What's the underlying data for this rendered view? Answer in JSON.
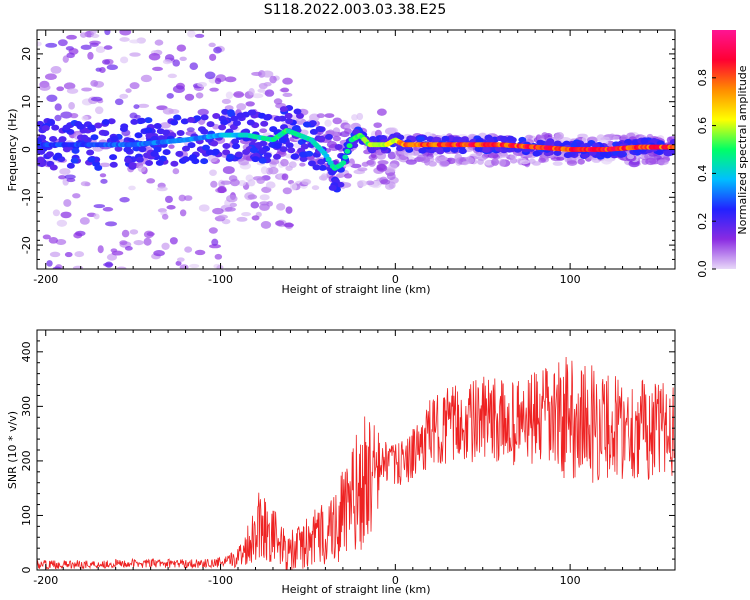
{
  "title": "S118.2022.003.03.38.E25",
  "chart_data": [
    {
      "type": "heatmap",
      "xlabel": "Height of straight line (km)",
      "ylabel": "Frequency (Hz)",
      "xlim": [
        -205,
        160
      ],
      "ylim": [
        -25,
        25
      ],
      "xticks": [
        -200,
        -100,
        0,
        100
      ],
      "yticks": [
        -20,
        -10,
        0,
        10,
        20
      ],
      "colorbar": {
        "label": "Normalized spectral amplitude",
        "ticks": [
          0.0,
          0.2,
          0.4,
          0.6,
          0.8
        ],
        "range": [
          0,
          1
        ],
        "colormap": [
          "#e8d8f8",
          "#8a2be2",
          "#2222ff",
          "#00bfff",
          "#00ff66",
          "#ffff00",
          "#ff8c00",
          "#ff0033",
          "#ff1493"
        ]
      },
      "ridge": {
        "x": [
          -205,
          -180,
          -150,
          -120,
          -100,
          -85,
          -70,
          -62,
          -55,
          -48,
          -40,
          -35,
          -30,
          -25,
          -20,
          -15,
          -10,
          -5,
          0,
          5,
          20,
          40,
          60,
          80,
          100,
          120,
          140,
          160
        ],
        "y": [
          1,
          1,
          1,
          2,
          3,
          3,
          2,
          4,
          3,
          2,
          -1,
          -4,
          -3,
          2,
          3,
          1,
          1,
          1,
          2,
          1,
          1,
          1,
          1,
          0.5,
          0,
          0,
          0.5,
          0.5
        ],
        "amplitude": [
          0.3,
          0.3,
          0.35,
          0.35,
          0.4,
          0.45,
          0.5,
          0.55,
          0.5,
          0.5,
          0.45,
          0.5,
          0.5,
          0.55,
          0.6,
          0.6,
          0.65,
          0.7,
          0.7,
          0.85,
          0.9,
          0.95,
          0.9,
          0.95,
          0.9,
          0.95,
          0.9,
          0.9
        ]
      }
    },
    {
      "type": "line",
      "xlabel": "Height of straight line (km)",
      "ylabel": "SNR (10 * v/v)",
      "xlim": [
        -205,
        160
      ],
      "ylim": [
        0,
        440
      ],
      "xticks": [
        -200,
        -100,
        0,
        100
      ],
      "yticks": [
        0,
        100,
        200,
        300,
        400
      ],
      "series": [
        {
          "color": "#ee2222",
          "x": [
            -205,
            -180,
            -150,
            -120,
            -105,
            -95,
            -88,
            -82,
            -78,
            -75,
            -72,
            -68,
            -65,
            -60,
            -55,
            -50,
            -45,
            -40,
            -35,
            -30,
            -25,
            -20,
            -15,
            -12,
            -10,
            -8,
            -5,
            -2,
            0,
            5,
            10,
            15,
            20,
            25,
            30,
            40,
            50,
            60,
            70,
            80,
            90,
            95,
            100,
            105,
            110,
            120,
            130,
            140,
            150,
            160
          ],
          "y": [
            10,
            10,
            12,
            12,
            12,
            15,
            30,
            60,
            90,
            80,
            70,
            60,
            40,
            30,
            40,
            50,
            60,
            70,
            80,
            100,
            120,
            150,
            170,
            180,
            180,
            190,
            200,
            195,
            190,
            200,
            210,
            230,
            250,
            260,
            265,
            270,
            275,
            270,
            270,
            275,
            275,
            280,
            280,
            275,
            270,
            265,
            260,
            260,
            255,
            260
          ],
          "noise": [
            5,
            5,
            5,
            5,
            5,
            8,
            15,
            30,
            45,
            40,
            35,
            30,
            25,
            25,
            30,
            30,
            35,
            40,
            45,
            55,
            65,
            75,
            80,
            60,
            50,
            30,
            25,
            25,
            25,
            25,
            30,
            35,
            40,
            40,
            45,
            45,
            50,
            50,
            50,
            55,
            65,
            70,
            70,
            70,
            70,
            65,
            60,
            60,
            55,
            55
          ]
        }
      ]
    }
  ]
}
